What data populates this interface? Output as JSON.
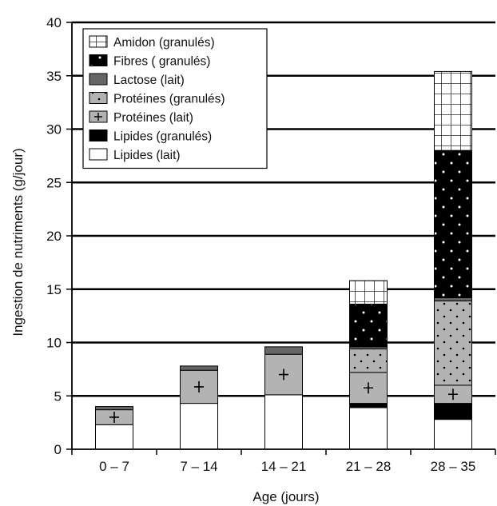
{
  "chart_data": {
    "type": "bar",
    "stacked": true,
    "title": "",
    "xlabel": "Age (jours)",
    "ylabel": "Ingestion de nutriments (g/jour)",
    "ylim": [
      0,
      40
    ],
    "yticks": [
      0,
      5,
      10,
      15,
      20,
      25,
      30,
      35,
      40
    ],
    "grid": "horizontal",
    "legend_position": "top-left",
    "categories": [
      "0 – 7",
      "7 – 14",
      "14 – 21",
      "21 – 28",
      "28 – 35"
    ],
    "series": [
      {
        "name": "Lipides (lait)",
        "pattern": "white",
        "values": [
          2.3,
          4.3,
          5.1,
          3.9,
          2.8
        ]
      },
      {
        "name": "Lipides (granulés)",
        "pattern": "black",
        "values": [
          0,
          0,
          0,
          0.4,
          1.5
        ]
      },
      {
        "name": "Protéines (lait)",
        "pattern": "plus",
        "values": [
          1.4,
          3.1,
          3.8,
          2.9,
          1.7
        ]
      },
      {
        "name": "Protéines (granulés)",
        "pattern": "dots-gray",
        "values": [
          0,
          0,
          0,
          2.2,
          7.9
        ]
      },
      {
        "name": "Lactose (lait)",
        "pattern": "darkgray",
        "values": [
          0.3,
          0.4,
          0.7,
          0.2,
          0.3
        ]
      },
      {
        "name": "Fibres ( granulés)",
        "pattern": "dots-black",
        "values": [
          0,
          0,
          0,
          4.0,
          13.8
        ]
      },
      {
        "name": "Amidon (granulés)",
        "pattern": "grid",
        "values": [
          0,
          0,
          0,
          2.2,
          7.4
        ]
      }
    ],
    "legend_order": [
      "Amidon (granulés)",
      "Fibres ( granulés)",
      "Lactose (lait)",
      "Protéines (granulés)",
      "Protéines (lait)",
      "Lipides (granulés)",
      "Lipides (lait)"
    ]
  }
}
